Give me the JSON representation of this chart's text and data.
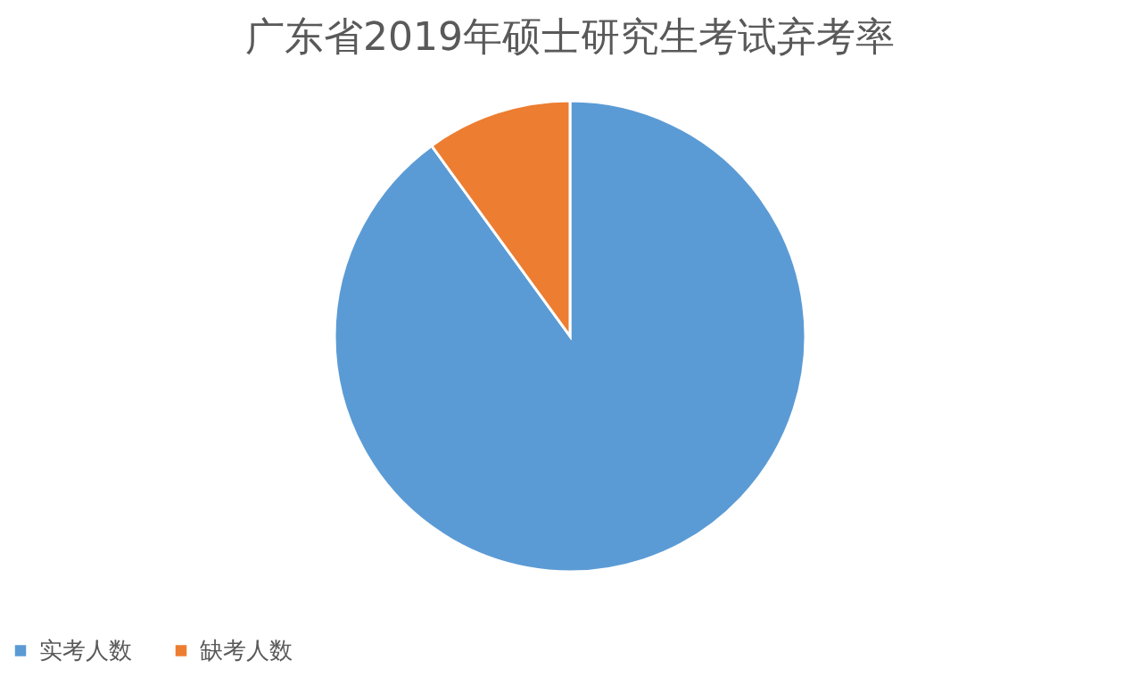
{
  "chart_data": {
    "type": "pie",
    "title": "广东省2019年硕士研究生考试弃考率",
    "categories": [
      "实考人数",
      "缺考人数"
    ],
    "values": [
      90,
      10
    ],
    "colors": [
      "#5b9bd5",
      "#ed7d31"
    ],
    "legend": "bottom"
  }
}
